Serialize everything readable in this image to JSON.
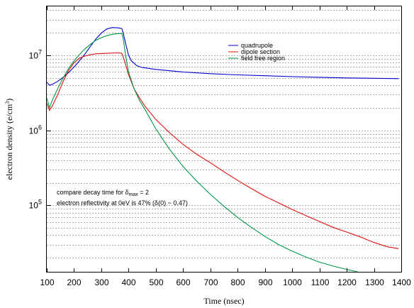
{
  "chart_data": {
    "type": "line",
    "xlabel": "Time (nsec)",
    "ylabel_main": "electron density (e/cm",
    "ylabel_sup": "3",
    "ylabel_end": ")",
    "xlim": [
      100,
      1400
    ],
    "ylim": [
      13000,
      45000000
    ],
    "yscale": "log",
    "grid": true,
    "x_ticks": [
      100,
      200,
      300,
      400,
      500,
      600,
      700,
      800,
      900,
      1000,
      1100,
      1200,
      1300,
      1400
    ],
    "x_tick_labels": [
      "100",
      "200",
      "300",
      "400",
      "500",
      "600",
      "700",
      "800",
      "900",
      "1000",
      "1100",
      "1200",
      "1300",
      "1400"
    ],
    "y_ticks": [
      {
        "value": 100000,
        "base": "10",
        "exp": "5"
      },
      {
        "value": 1000000,
        "base": "10",
        "exp": "6"
      },
      {
        "value": 10000000,
        "base": "10",
        "exp": "7"
      }
    ],
    "legend_position": "top-right",
    "annotations": [
      {
        "parts": [
          "compare decay time for δ",
          "max",
          " = 2"
        ]
      },
      {
        "parts": [
          "electron reflectivity at 0eV is 47% (δ(0) ~ 0.47)"
        ]
      }
    ],
    "series": [
      {
        "name": "quadrupole",
        "color": "#0000cc",
        "points": [
          [
            100,
            4400000
          ],
          [
            110,
            4000000
          ],
          [
            120,
            4100000
          ],
          [
            140,
            4500000
          ],
          [
            160,
            5100000
          ],
          [
            180,
            5900000
          ],
          [
            200,
            7000000
          ],
          [
            220,
            8500000
          ],
          [
            240,
            10400000
          ],
          [
            260,
            13200000
          ],
          [
            280,
            16500000
          ],
          [
            300,
            19800000
          ],
          [
            320,
            22500000
          ],
          [
            340,
            23500000
          ],
          [
            360,
            23300000
          ],
          [
            375,
            22800000
          ],
          [
            380,
            20000000
          ],
          [
            390,
            14000000
          ],
          [
            400,
            10000000
          ],
          [
            410,
            8500000
          ],
          [
            430,
            7300000
          ],
          [
            450,
            6900000
          ],
          [
            500,
            6500000
          ],
          [
            600,
            6000000
          ],
          [
            700,
            5700000
          ],
          [
            800,
            5500000
          ],
          [
            900,
            5350000
          ],
          [
            1000,
            5200000
          ],
          [
            1100,
            5100000
          ],
          [
            1200,
            5000000
          ],
          [
            1300,
            4950000
          ],
          [
            1390,
            4900000
          ]
        ]
      },
      {
        "name": "dipole section",
        "color": "#e01010",
        "points": [
          [
            100,
            2300000
          ],
          [
            110,
            1850000
          ],
          [
            120,
            2100000
          ],
          [
            140,
            3000000
          ],
          [
            160,
            4500000
          ],
          [
            180,
            6300000
          ],
          [
            200,
            8000000
          ],
          [
            220,
            9200000
          ],
          [
            240,
            9800000
          ],
          [
            260,
            10200000
          ],
          [
            280,
            10500000
          ],
          [
            300,
            10600000
          ],
          [
            330,
            10700000
          ],
          [
            360,
            10800000
          ],
          [
            375,
            10700000
          ],
          [
            385,
            8500000
          ],
          [
            400,
            5500000
          ],
          [
            420,
            3600000
          ],
          [
            440,
            2700000
          ],
          [
            460,
            2100000
          ],
          [
            500,
            1400000
          ],
          [
            550,
            930000
          ],
          [
            600,
            650000
          ],
          [
            650,
            480000
          ],
          [
            700,
            370000
          ],
          [
            750,
            280000
          ],
          [
            800,
            215000
          ],
          [
            850,
            168000
          ],
          [
            900,
            132000
          ],
          [
            950,
            108000
          ],
          [
            1000,
            88000
          ],
          [
            1050,
            73000
          ],
          [
            1100,
            61000
          ],
          [
            1150,
            51000
          ],
          [
            1200,
            44000
          ],
          [
            1250,
            38000
          ],
          [
            1300,
            32000
          ],
          [
            1350,
            28000
          ],
          [
            1390,
            26500
          ]
        ]
      },
      {
        "name": "field free region",
        "color": "#009944",
        "points": [
          [
            100,
            2700000
          ],
          [
            110,
            2000000
          ],
          [
            120,
            2500000
          ],
          [
            140,
            3600000
          ],
          [
            160,
            5000000
          ],
          [
            180,
            6700000
          ],
          [
            200,
            8500000
          ],
          [
            220,
            10300000
          ],
          [
            240,
            12200000
          ],
          [
            260,
            14000000
          ],
          [
            280,
            15900000
          ],
          [
            300,
            17200000
          ],
          [
            320,
            18300000
          ],
          [
            340,
            19100000
          ],
          [
            360,
            19500000
          ],
          [
            375,
            19600000
          ],
          [
            380,
            17000000
          ],
          [
            390,
            9500000
          ],
          [
            400,
            6000000
          ],
          [
            420,
            3600000
          ],
          [
            440,
            2500000
          ],
          [
            460,
            1900000
          ],
          [
            500,
            1050000
          ],
          [
            550,
            560000
          ],
          [
            600,
            330000
          ],
          [
            650,
            210000
          ],
          [
            700,
            140000
          ],
          [
            750,
            97000
          ],
          [
            800,
            69000
          ],
          [
            850,
            51000
          ],
          [
            900,
            38500
          ],
          [
            950,
            30000
          ],
          [
            1000,
            24500
          ],
          [
            1050,
            20500
          ],
          [
            1100,
            17500
          ],
          [
            1150,
            15500
          ],
          [
            1200,
            14000
          ],
          [
            1240,
            13000
          ]
        ]
      }
    ]
  }
}
